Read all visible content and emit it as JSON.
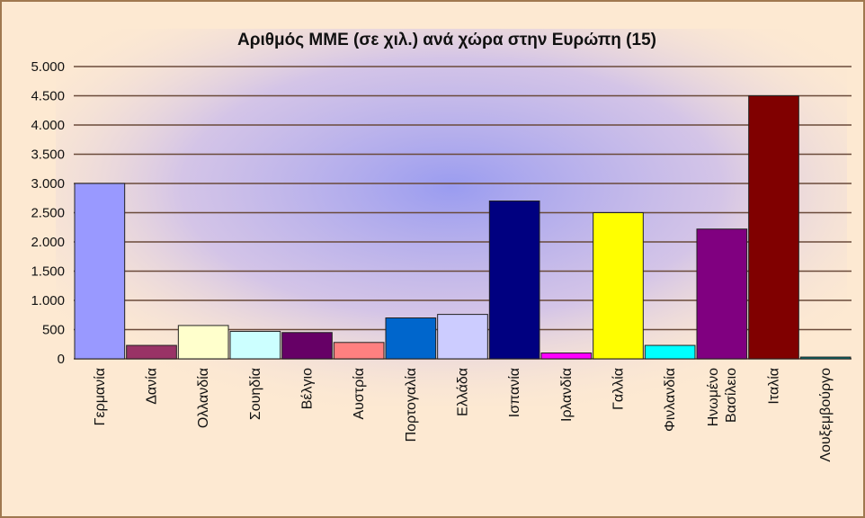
{
  "chart_data": {
    "type": "bar",
    "title": "Αριθμός ΜΜΕ (σε χιλ.) ανά χώρα στην Ευρώπη (15)",
    "xlabel": "",
    "ylabel": "",
    "ylim": [
      0,
      5000
    ],
    "ytick_values": [
      0,
      500,
      1000,
      1500,
      2000,
      2500,
      3000,
      3500,
      4000,
      4500,
      5000
    ],
    "ytick_labels": [
      "0",
      "500",
      "1.000",
      "1.500",
      "2.000",
      "2.500",
      "3.000",
      "3.500",
      "4.000",
      "4.500",
      "5.000"
    ],
    "grid": true,
    "legend": "none",
    "categories": [
      "Γερμανία",
      "Δανία",
      "Ολλανδία",
      "Σουηδία",
      "Βέλγιο",
      "Αυστρία",
      "Πορτογαλία",
      "Ελλάδα",
      "Ισπανία",
      "Ιρλανδία",
      "Γαλλία",
      "Φινλανδία",
      "Ηνωμένο Βασίλειο",
      "Ιταλία",
      "Λουξεμβούργο"
    ],
    "category_label_lines": [
      [
        "Γερμανία"
      ],
      [
        "Δανία"
      ],
      [
        "Ολλανδία"
      ],
      [
        "Σουηδία"
      ],
      [
        "Βέλγιο"
      ],
      [
        "Αυστρία"
      ],
      [
        "Πορτογαλία"
      ],
      [
        "Ελλάδα"
      ],
      [
        "Ισπανία"
      ],
      [
        "Ιρλανδία"
      ],
      [
        "Γαλλία"
      ],
      [
        "Φινλανδία"
      ],
      [
        "Ηνωμένο",
        "Βασίλειο"
      ],
      [
        "Ιταλία"
      ],
      [
        "Λουξεμβούργο"
      ]
    ],
    "values": [
      3000,
      230,
      570,
      470,
      450,
      280,
      700,
      760,
      2700,
      100,
      2500,
      230,
      2220,
      4500,
      30
    ],
    "colors": [
      "#9999ff",
      "#993366",
      "#ffffcc",
      "#ccffff",
      "#660066",
      "#ff8080",
      "#0066cc",
      "#ccccff",
      "#000080",
      "#ff00ff",
      "#ffff00",
      "#00ffff",
      "#800080",
      "#800000",
      "#008080"
    ],
    "background": {
      "base": "#fde9d2",
      "glow": "#9a9cf0"
    }
  }
}
